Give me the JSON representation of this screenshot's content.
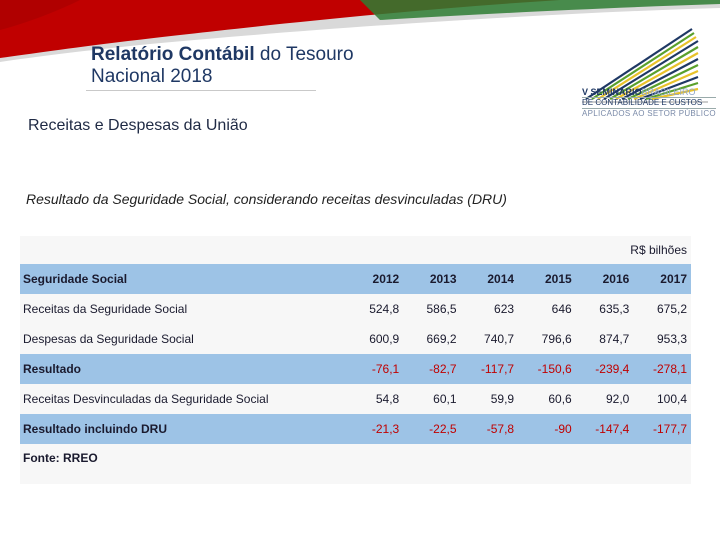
{
  "header": {
    "title_bold": "Relatório Contábil",
    "title_rest": " do Tesouro",
    "title_line2": "Nacional 2018"
  },
  "logo": {
    "line1_bold": "V SEMINÁRIO",
    "line1_light": "BRASILEIRO",
    "line2": "DE CONTABILIDADE E CUSTOS",
    "line3": "APLICADOS AO SETOR PÚBLICO",
    "colors": {
      "blue": "#1f3864",
      "red": "#c00000",
      "green": "#5aa02c",
      "yellow": "#e8c22a",
      "light_blue": "#8fa6c8"
    }
  },
  "heading": "Receitas e Despesas da União",
  "subtitle": "Resultado da Seguridade Social, considerando receitas desvinculadas (DRU)",
  "table": {
    "unit": "R$ bilhões",
    "header_label": "Seguridade Social",
    "years": [
      "2012",
      "2013",
      "2014",
      "2015",
      "2016",
      "2017"
    ],
    "rows": [
      {
        "label": "Receitas da Seguridade Social",
        "values": [
          "524,8",
          "586,5",
          "623",
          "646",
          "635,3",
          "675,2"
        ]
      },
      {
        "label": "Despesas da Seguridade Social",
        "values": [
          "600,9",
          "669,2",
          "740,7",
          "796,6",
          "874,7",
          "953,3"
        ]
      },
      {
        "label": "Resultado",
        "values": [
          "-76,1",
          "-82,7",
          "-117,7",
          "-150,6",
          "-239,4",
          "-278,1"
        ]
      },
      {
        "label": "Receitas Desvinculadas da Seguridade Social",
        "values": [
          "54,8",
          "60,1",
          "59,9",
          "60,6",
          "92,0",
          "100,4"
        ]
      },
      {
        "label": "Resultado incluindo DRU",
        "values": [
          "-21,3",
          "-22,5",
          "-57,8",
          "-90",
          "-147,4",
          "-177,7"
        ]
      }
    ],
    "source": "Fonte: RREO"
  }
}
